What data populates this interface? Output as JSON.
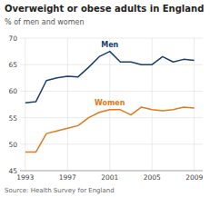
{
  "chart_data": {
    "type": "line",
    "title": "Overweight or obese adults in England",
    "subtitle": "% of men and women",
    "source": "Source: Health Survey for England",
    "x": [
      1993,
      1994,
      1995,
      1996,
      1997,
      1998,
      1999,
      2000,
      2001,
      2002,
      2003,
      2004,
      2005,
      2006,
      2007,
      2008,
      2009
    ],
    "series": [
      {
        "name": "Men",
        "color": "#1a3f6f",
        "values": [
          57.8,
          58.0,
          62.0,
          62.5,
          62.8,
          62.7,
          64.5,
          66.5,
          67.5,
          65.5,
          65.5,
          65.0,
          65.0,
          66.5,
          65.5,
          66.0,
          65.8
        ]
      },
      {
        "name": "Women",
        "color": "#e07b20",
        "values": [
          48.5,
          48.5,
          52.0,
          52.5,
          53.0,
          53.5,
          55.0,
          56.0,
          56.5,
          56.5,
          55.5,
          57.0,
          56.5,
          56.3,
          56.5,
          57.0,
          56.8
        ]
      }
    ],
    "xlim": [
      1992.5,
      2009.8
    ],
    "ylim": [
      45,
      70
    ],
    "xticks": [
      1993,
      1997,
      2001,
      2005,
      2009
    ],
    "yticks": [
      45,
      50,
      55,
      60,
      65,
      70
    ],
    "grid": true
  }
}
